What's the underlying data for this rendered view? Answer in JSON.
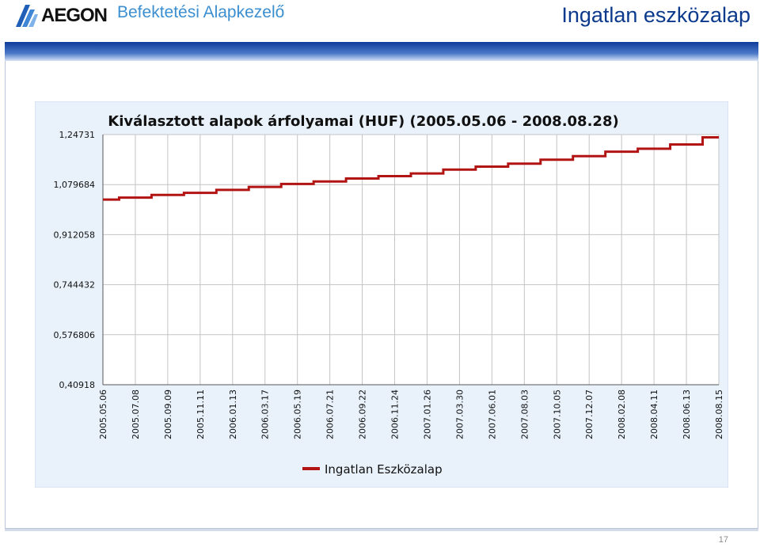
{
  "header": {
    "logo_text": "AEGON",
    "subtitle": "Befektetési Alapkezelő",
    "slide_title": "Ingatlan eszközalap"
  },
  "footer": {
    "page_number": "17"
  },
  "colors": {
    "series": "#b21414",
    "title_blue": "#0b3a8c",
    "subtitle_blue": "#3b8fd0",
    "chart_bg": "#eaf2fb"
  },
  "chart_data": {
    "type": "line",
    "title": "Kiválasztott alapok árfolyamai (HUF) (2005.05.06 - 2008.08.28)",
    "xlabel": "",
    "ylabel": "",
    "categories": [
      "2005.05.06",
      "2005.07.08",
      "2005.09.09",
      "2005.11.11",
      "2006.01.13",
      "2006.03.17",
      "2006.05.19",
      "2006.07.21",
      "2006.09.22",
      "2006.11.24",
      "2007.01.26",
      "2007.03.30",
      "2007.06.01",
      "2007.08.03",
      "2007.10.05",
      "2007.12.07",
      "2008.02.08",
      "2008.04.11",
      "2008.06.13",
      "2008.08.15"
    ],
    "y_ticks": [
      "1,24731",
      "1,079684",
      "0,912058",
      "0,744432",
      "0,576806",
      "0,40918"
    ],
    "ylim": [
      0.40918,
      1.24731
    ],
    "grid": true,
    "legend_position": "bottom",
    "series": [
      {
        "name": "Ingatlan Eszközalap",
        "color": "#b21414",
        "values": [
          1.0295,
          1.036,
          1.045,
          1.052,
          1.062,
          1.072,
          1.082,
          1.09,
          1.1,
          1.108,
          1.117,
          1.13,
          1.14,
          1.15,
          1.163,
          1.175,
          1.19,
          1.2,
          1.214,
          1.238
        ]
      }
    ]
  }
}
